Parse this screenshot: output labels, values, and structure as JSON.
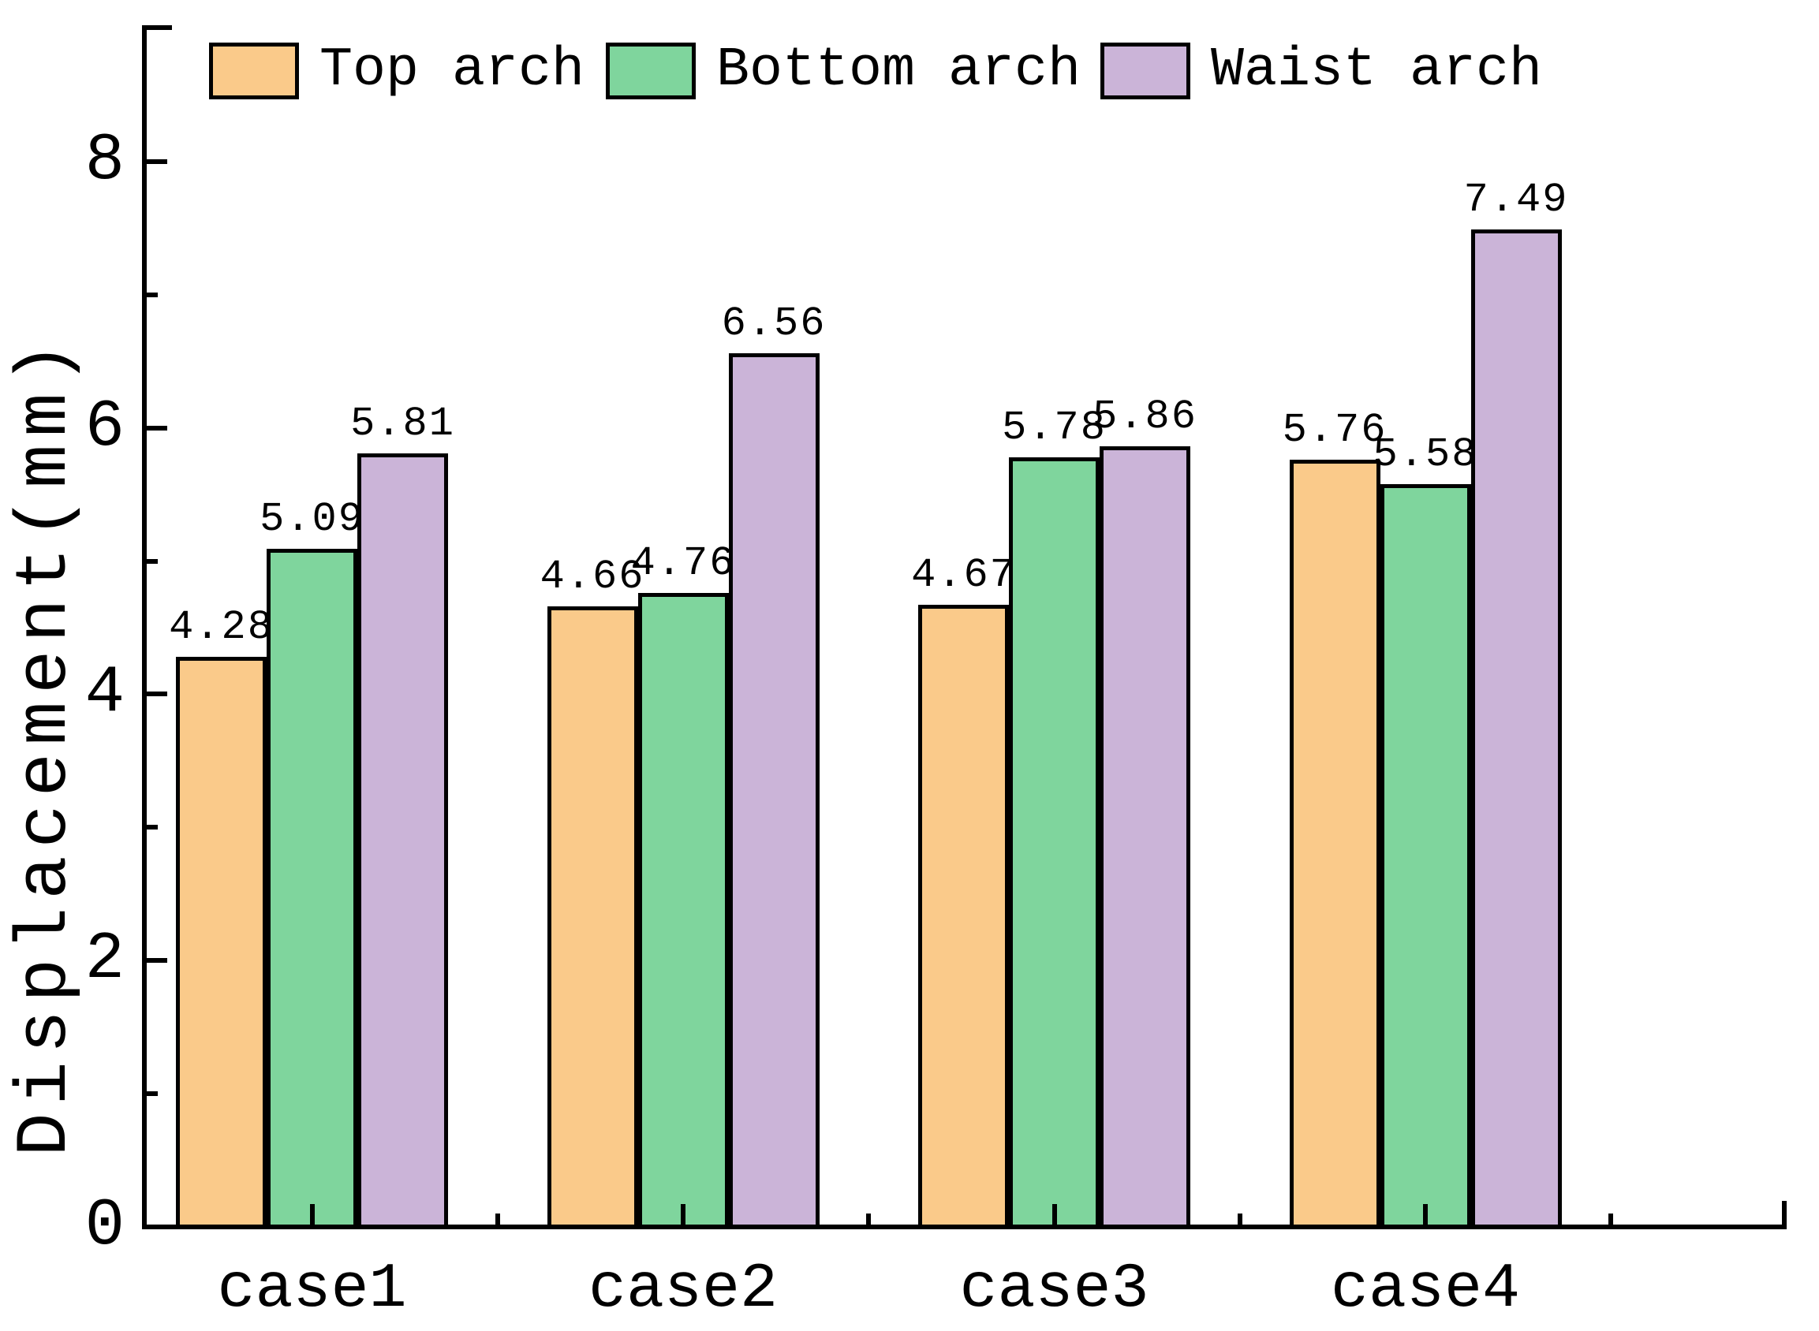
{
  "figure": {
    "background_color": "#ffffff",
    "axis_color": "#000000",
    "text_color": "#000000"
  },
  "legend": {
    "position": "top",
    "items": [
      {
        "label": "Top arch",
        "color": "#FACA8A"
      },
      {
        "label": "Bottom arch",
        "color": "#7FD59D"
      },
      {
        "label": "Waist arch",
        "color": "#CBB4D8"
      }
    ]
  },
  "chart_data": {
    "type": "bar",
    "title": "",
    "xlabel": "",
    "ylabel": "Displacement(mm)",
    "categories": [
      "case1",
      "case2",
      "case3",
      "case4"
    ],
    "series": [
      {
        "name": "Top arch",
        "color": "#FACA8A",
        "values": [
          4.28,
          4.66,
          4.67,
          5.76
        ],
        "labels": [
          "4.28",
          "4.66",
          "4.67",
          "5.76"
        ]
      },
      {
        "name": "Bottom arch",
        "color": "#7FD59D",
        "values": [
          5.09,
          4.76,
          5.78,
          5.58
        ],
        "labels": [
          "5.09",
          "4.76",
          "5.78",
          "5.58"
        ]
      },
      {
        "name": "Waist arch",
        "color": "#CBB4D8",
        "values": [
          5.81,
          6.56,
          5.86,
          7.49
        ],
        "labels": [
          "5.81",
          "6.56",
          "5.86",
          "7.49"
        ]
      }
    ],
    "bar_edge_color": "#000000",
    "ylim": [
      0,
      9
    ],
    "yticks": [
      0,
      2,
      4,
      6,
      8
    ],
    "ytick_labels": [
      "0",
      "2",
      "4",
      "6",
      "8"
    ],
    "minor_yticks": [
      1,
      3,
      5,
      7
    ],
    "grid": false,
    "legend_position": "top",
    "data_labels_shown": true
  }
}
